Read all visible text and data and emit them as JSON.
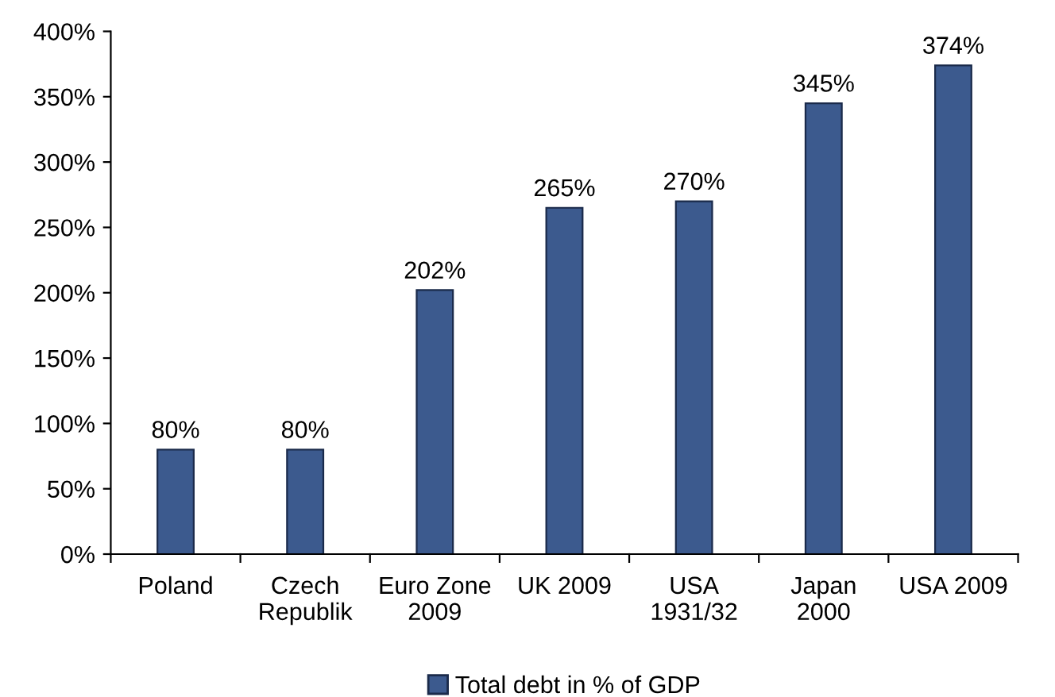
{
  "chart_data": {
    "type": "bar",
    "categories": [
      "Poland",
      "Czech\nRepublik",
      "Euro Zone\n2009",
      "UK 2009",
      "USA\n1931/32",
      "Japan\n2000",
      "USA 2009"
    ],
    "series": [
      {
        "name": "Total debt in % of GDP",
        "color": "#3c5a8e",
        "values": [
          80,
          80,
          202,
          265,
          270,
          345,
          374
        ],
        "value_labels": [
          "80%",
          "80%",
          "202%",
          "265%",
          "270%",
          "345%",
          "374%"
        ]
      }
    ],
    "ylim": [
      0,
      400
    ],
    "yticks": [
      {
        "value": 0,
        "label": "0%"
      },
      {
        "value": 50,
        "label": "50%"
      },
      {
        "value": 100,
        "label": "100%"
      },
      {
        "value": 150,
        "label": "150%"
      },
      {
        "value": 200,
        "label": "200%"
      },
      {
        "value": 250,
        "label": "250%"
      },
      {
        "value": 300,
        "label": "300%"
      },
      {
        "value": 350,
        "label": "350%"
      },
      {
        "value": 400,
        "label": "400%"
      }
    ],
    "grid": false,
    "legend": "bottom"
  }
}
